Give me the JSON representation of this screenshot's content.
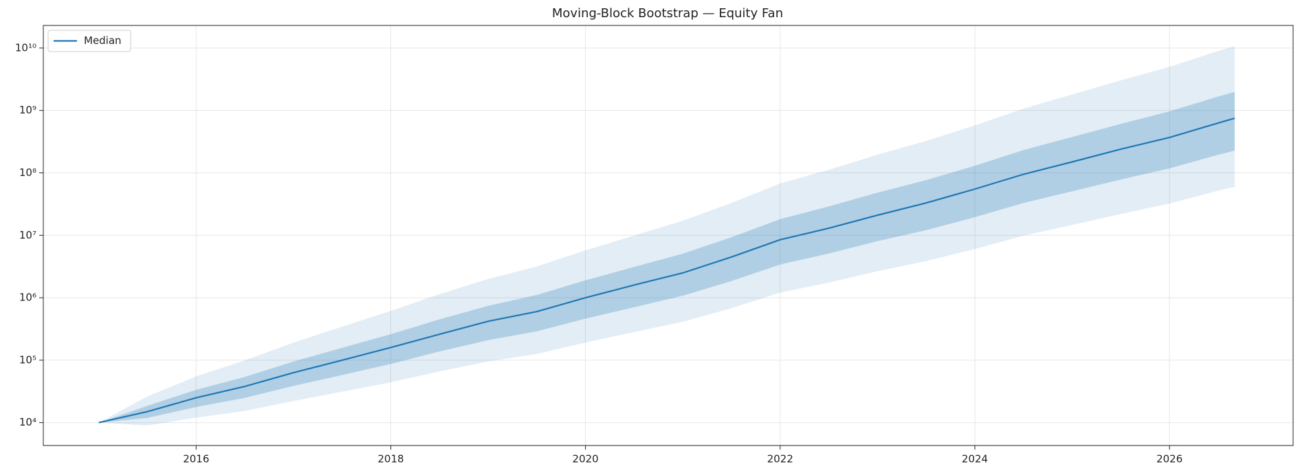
{
  "chart_data": {
    "type": "fan",
    "title": "Moving-Block Bootstrap — Equity Fan",
    "x": [
      2015,
      2015.5,
      2016,
      2016.5,
      2017,
      2017.5,
      2018,
      2018.5,
      2019,
      2019.5,
      2020,
      2020.5,
      2021,
      2021.5,
      2022,
      2022.5,
      2023,
      2023.5,
      2024,
      2024.5,
      2025,
      2025.5,
      2026,
      2026.5,
      2026.67
    ],
    "series": [
      {
        "name": "Median",
        "color": "#1f77b4",
        "values": [
          10000,
          15000,
          25000,
          38000,
          63000,
          100000,
          160000,
          260000,
          420000,
          600000,
          1000000,
          1600000,
          2500000,
          4500000,
          8500000,
          13000000,
          21000000,
          33000000,
          55000000,
          95000000,
          150000000,
          240000000,
          370000000,
          630000000,
          750000000
        ]
      }
    ],
    "bands": [
      {
        "color": "#1f77b4",
        "opacity": 0.13,
        "upper": [
          10000,
          26300,
          55000,
          99300,
          191000,
          345000,
          615000,
          1140000,
          2000000,
          3170000,
          5750000,
          9930000,
          17100000,
          32900000,
          67600000,
          112000000,
          196000000,
          324000000,
          575000000,
          1070000000,
          1800000000,
          3030000000,
          4990000000,
          8970000000,
          10700000000
        ],
        "lower": [
          10000,
          9000,
          12000,
          15400,
          22200,
          31200,
          44300,
          66200,
          95500,
          126000,
          192000,
          282000,
          413000,
          682000,
          1210000,
          1750000,
          2660000,
          3860000,
          6030000,
          9860000,
          14700000,
          22000000,
          32300000,
          51900000,
          59800000
        ]
      },
      {
        "color": "#1f77b4",
        "opacity": 0.25,
        "upper": [
          10000,
          18600,
          33500,
          54000,
          95000,
          158000,
          261000,
          451000,
          741000,
          1110000,
          1900000,
          3110000,
          5080000,
          9310000,
          18200000,
          29000000,
          48300000,
          76600000,
          130000000,
          232000000,
          376000000,
          610000000,
          966000000,
          1670000000,
          1980000000
        ],
        "lower": [
          10000,
          11900,
          17800,
          24900,
          38700,
          57900,
          87100,
          138000,
          209000,
          290000,
          462000,
          705000,
          1080000,
          1850000,
          3410000,
          5120000,
          8050000,
          12100000,
          19500000,
          33000000,
          50800000,
          78300000,
          118000000,
          195000000,
          228000000
        ]
      }
    ],
    "xlim": [
      2014.43,
      2027.27
    ],
    "xticks": [
      2016,
      2018,
      2020,
      2022,
      2024,
      2026
    ],
    "ylim": [
      4300,
      23000000000
    ],
    "yscale": "log",
    "yticks": [
      {
        "value": 10000,
        "label": "10⁴"
      },
      {
        "value": 100000,
        "label": "10⁵"
      },
      {
        "value": 1000000,
        "label": "10⁶"
      },
      {
        "value": 10000000,
        "label": "10⁷"
      },
      {
        "value": 100000000,
        "label": "10⁸"
      },
      {
        "value": 1000000000,
        "label": "10⁹"
      },
      {
        "value": 10000000000,
        "label": "10¹⁰"
      }
    ],
    "grid": true,
    "legend": "upper left"
  }
}
